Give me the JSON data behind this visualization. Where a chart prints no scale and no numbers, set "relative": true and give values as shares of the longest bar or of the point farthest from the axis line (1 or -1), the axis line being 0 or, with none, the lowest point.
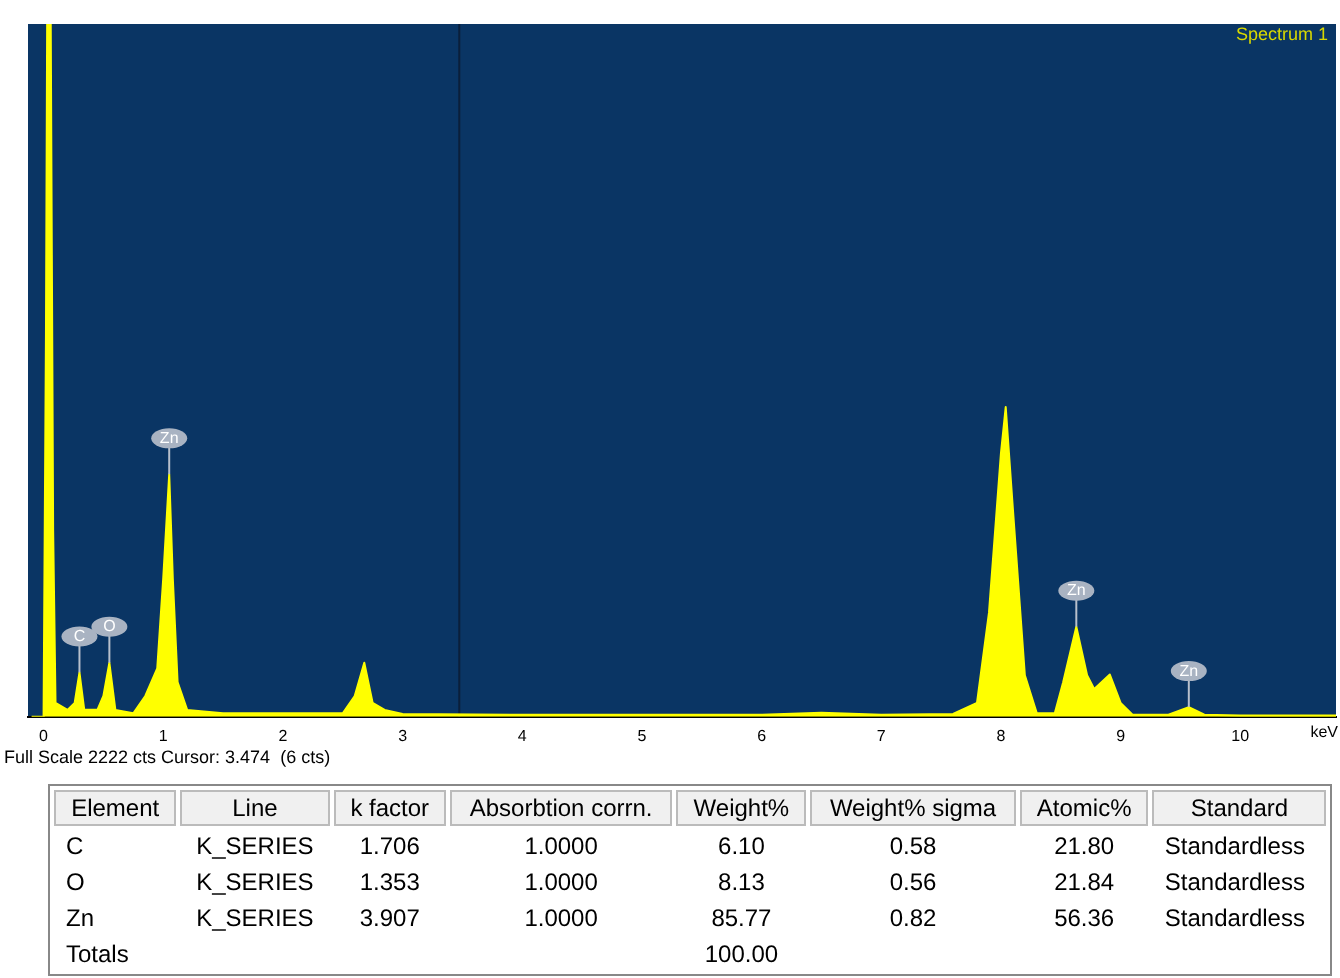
{
  "chart_data": [
    {
      "type": "area",
      "relative": true,
      "xlabel": "keV",
      "xlim": [
        -0.13,
        10.8
      ],
      "xticks": [
        0,
        1,
        2,
        3,
        4,
        5,
        6,
        7,
        8,
        9,
        10
      ],
      "grid": false,
      "legend": false,
      "marker": "none",
      "x": [
        -0.1,
        0.0,
        0.02,
        0.03,
        0.06,
        0.08,
        0.1,
        0.2,
        0.26,
        0.3,
        0.34,
        0.45,
        0.5,
        0.55,
        0.6,
        0.75,
        0.85,
        0.95,
        1.0,
        1.05,
        1.08,
        1.12,
        1.2,
        1.5,
        2.0,
        2.5,
        2.6,
        2.68,
        2.75,
        2.85,
        3.0,
        4.0,
        5.0,
        6.0,
        6.5,
        7.0,
        7.6,
        7.8,
        7.9,
        8.0,
        8.04,
        8.1,
        8.2,
        8.3,
        8.45,
        8.52,
        8.63,
        8.72,
        8.78,
        8.91,
        9.0,
        9.1,
        9.4,
        9.57,
        9.7,
        10.0,
        10.8
      ],
      "series": [
        {
          "color": "#ffff00",
          "values": [
            0,
            0,
            0.55,
            1,
            1,
            0.27,
            0.02,
            0.01,
            0.02,
            0.064,
            0.01,
            0.01,
            0.03,
            0.078,
            0.01,
            0.005,
            0.03,
            0.07,
            0.2,
            0.35,
            0.2,
            0.05,
            0.01,
            0.005,
            0.005,
            0.005,
            0.03,
            0.078,
            0.02,
            0.01,
            0.004,
            0.003,
            0.003,
            0.003,
            0.006,
            0.003,
            0.004,
            0.02,
            0.15,
            0.38,
            0.447,
            0.3,
            0.06,
            0.005,
            0.005,
            0.05,
            0.13,
            0.06,
            0.04,
            0.061,
            0.02,
            0.003,
            0.003,
            0.014,
            0.003,
            0.002,
            0.002
          ]
        }
      ],
      "ref_lines": [
        {
          "axis": "x",
          "value": 3.474,
          "color": "#0b1f3a"
        }
      ],
      "annotations": [
        "Spectrum 1",
        "Full Scale 2222 cts Cursor: 3.474  (6 cts)",
        {
          "text": "C",
          "x": 0.3,
          "y": 0.064
        },
        {
          "text": "O",
          "x": 0.55,
          "y": 0.078
        },
        {
          "text": "Zn",
          "x": 1.05,
          "y": 0.35
        },
        {
          "text": "Zn",
          "x": 8.63,
          "y": 0.13
        },
        {
          "text": "Zn",
          "x": 9.57,
          "y": 0.014
        }
      ]
    },
    {
      "type": "other",
      "categories": [
        "Element",
        "Line",
        "k factor",
        "Absorbtion corrn.",
        "Weight%",
        "Weight% sigma",
        "Atomic%",
        "Standard"
      ],
      "cell_labels": [
        [
          "C",
          "K_SERIES",
          "1.706",
          "1.0000",
          "6.10",
          "0.58",
          "21.80",
          "Standardless"
        ],
        [
          "O",
          "K_SERIES",
          "1.353",
          "1.0000",
          "8.13",
          "0.56",
          "21.84",
          "Standardless"
        ],
        [
          "Zn",
          "K_SERIES",
          "3.907",
          "1.0000",
          "85.77",
          "0.82",
          "56.36",
          "Standardless"
        ],
        [
          "Totals",
          null,
          null,
          null,
          "100.00",
          null,
          null,
          null
        ]
      ]
    }
  ]
}
